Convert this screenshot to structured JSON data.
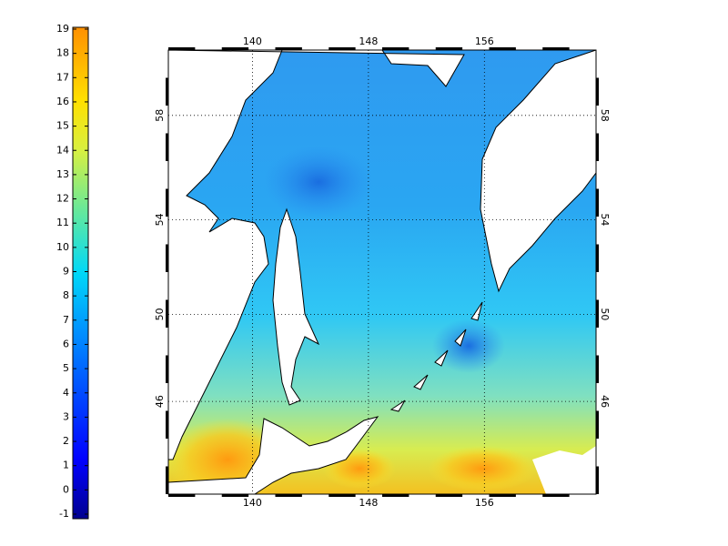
{
  "colorbar": {
    "range": [
      -1,
      19
    ],
    "ticks": [
      -1,
      0,
      1,
      2,
      3,
      4,
      5,
      6,
      7,
      8,
      9,
      10,
      11,
      12,
      13,
      14,
      15,
      16,
      17,
      18,
      19
    ]
  },
  "map": {
    "lon_range": [
      134.2,
      163.7
    ],
    "lat_range": [
      41.4,
      60.3
    ],
    "lon_ticks": [
      140,
      148,
      156
    ],
    "lat_ticks": [
      46,
      50,
      54,
      58
    ],
    "grid": true
  }
}
